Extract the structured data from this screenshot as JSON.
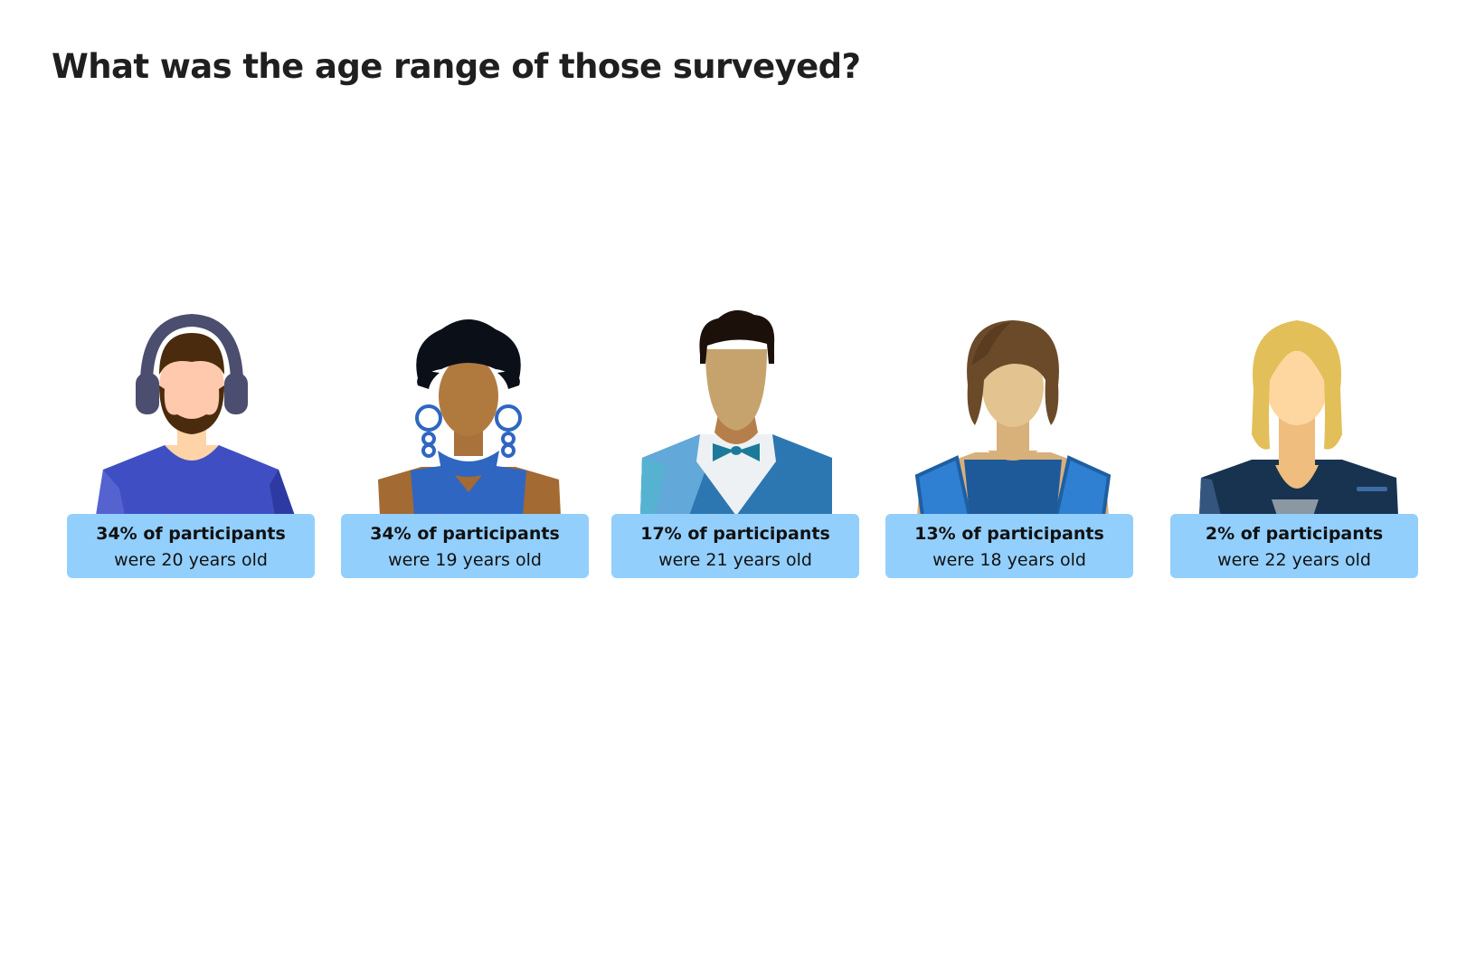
{
  "title": "What was the age range of those surveyed?",
  "chart_data": {
    "type": "pictograph",
    "title": "What was the age range of those surveyed?",
    "items": [
      {
        "value": 34,
        "percent_label": "34% of participants",
        "age_label": "were 20 years old",
        "age": 20,
        "icon": "man-with-headphones-icon"
      },
      {
        "value": 34,
        "percent_label": "34% of participants",
        "age_label": "were 19 years old",
        "age": 19,
        "icon": "woman-with-earrings-icon"
      },
      {
        "value": 17,
        "percent_label": "17% of participants",
        "age_label": "were 21 years old",
        "age": 21,
        "icon": "man-with-bowtie-icon"
      },
      {
        "value": 13,
        "percent_label": "13% of participants",
        "age_label": "were 18 years old",
        "age": 18,
        "icon": "woman-short-hair-icon"
      },
      {
        "value": 2,
        "percent_label": "2% of participants",
        "age_label": "were 22 years old",
        "age": 22,
        "icon": "blonde-woman-icon"
      }
    ],
    "label_color": "#93cffd",
    "text_color": "#111111"
  }
}
